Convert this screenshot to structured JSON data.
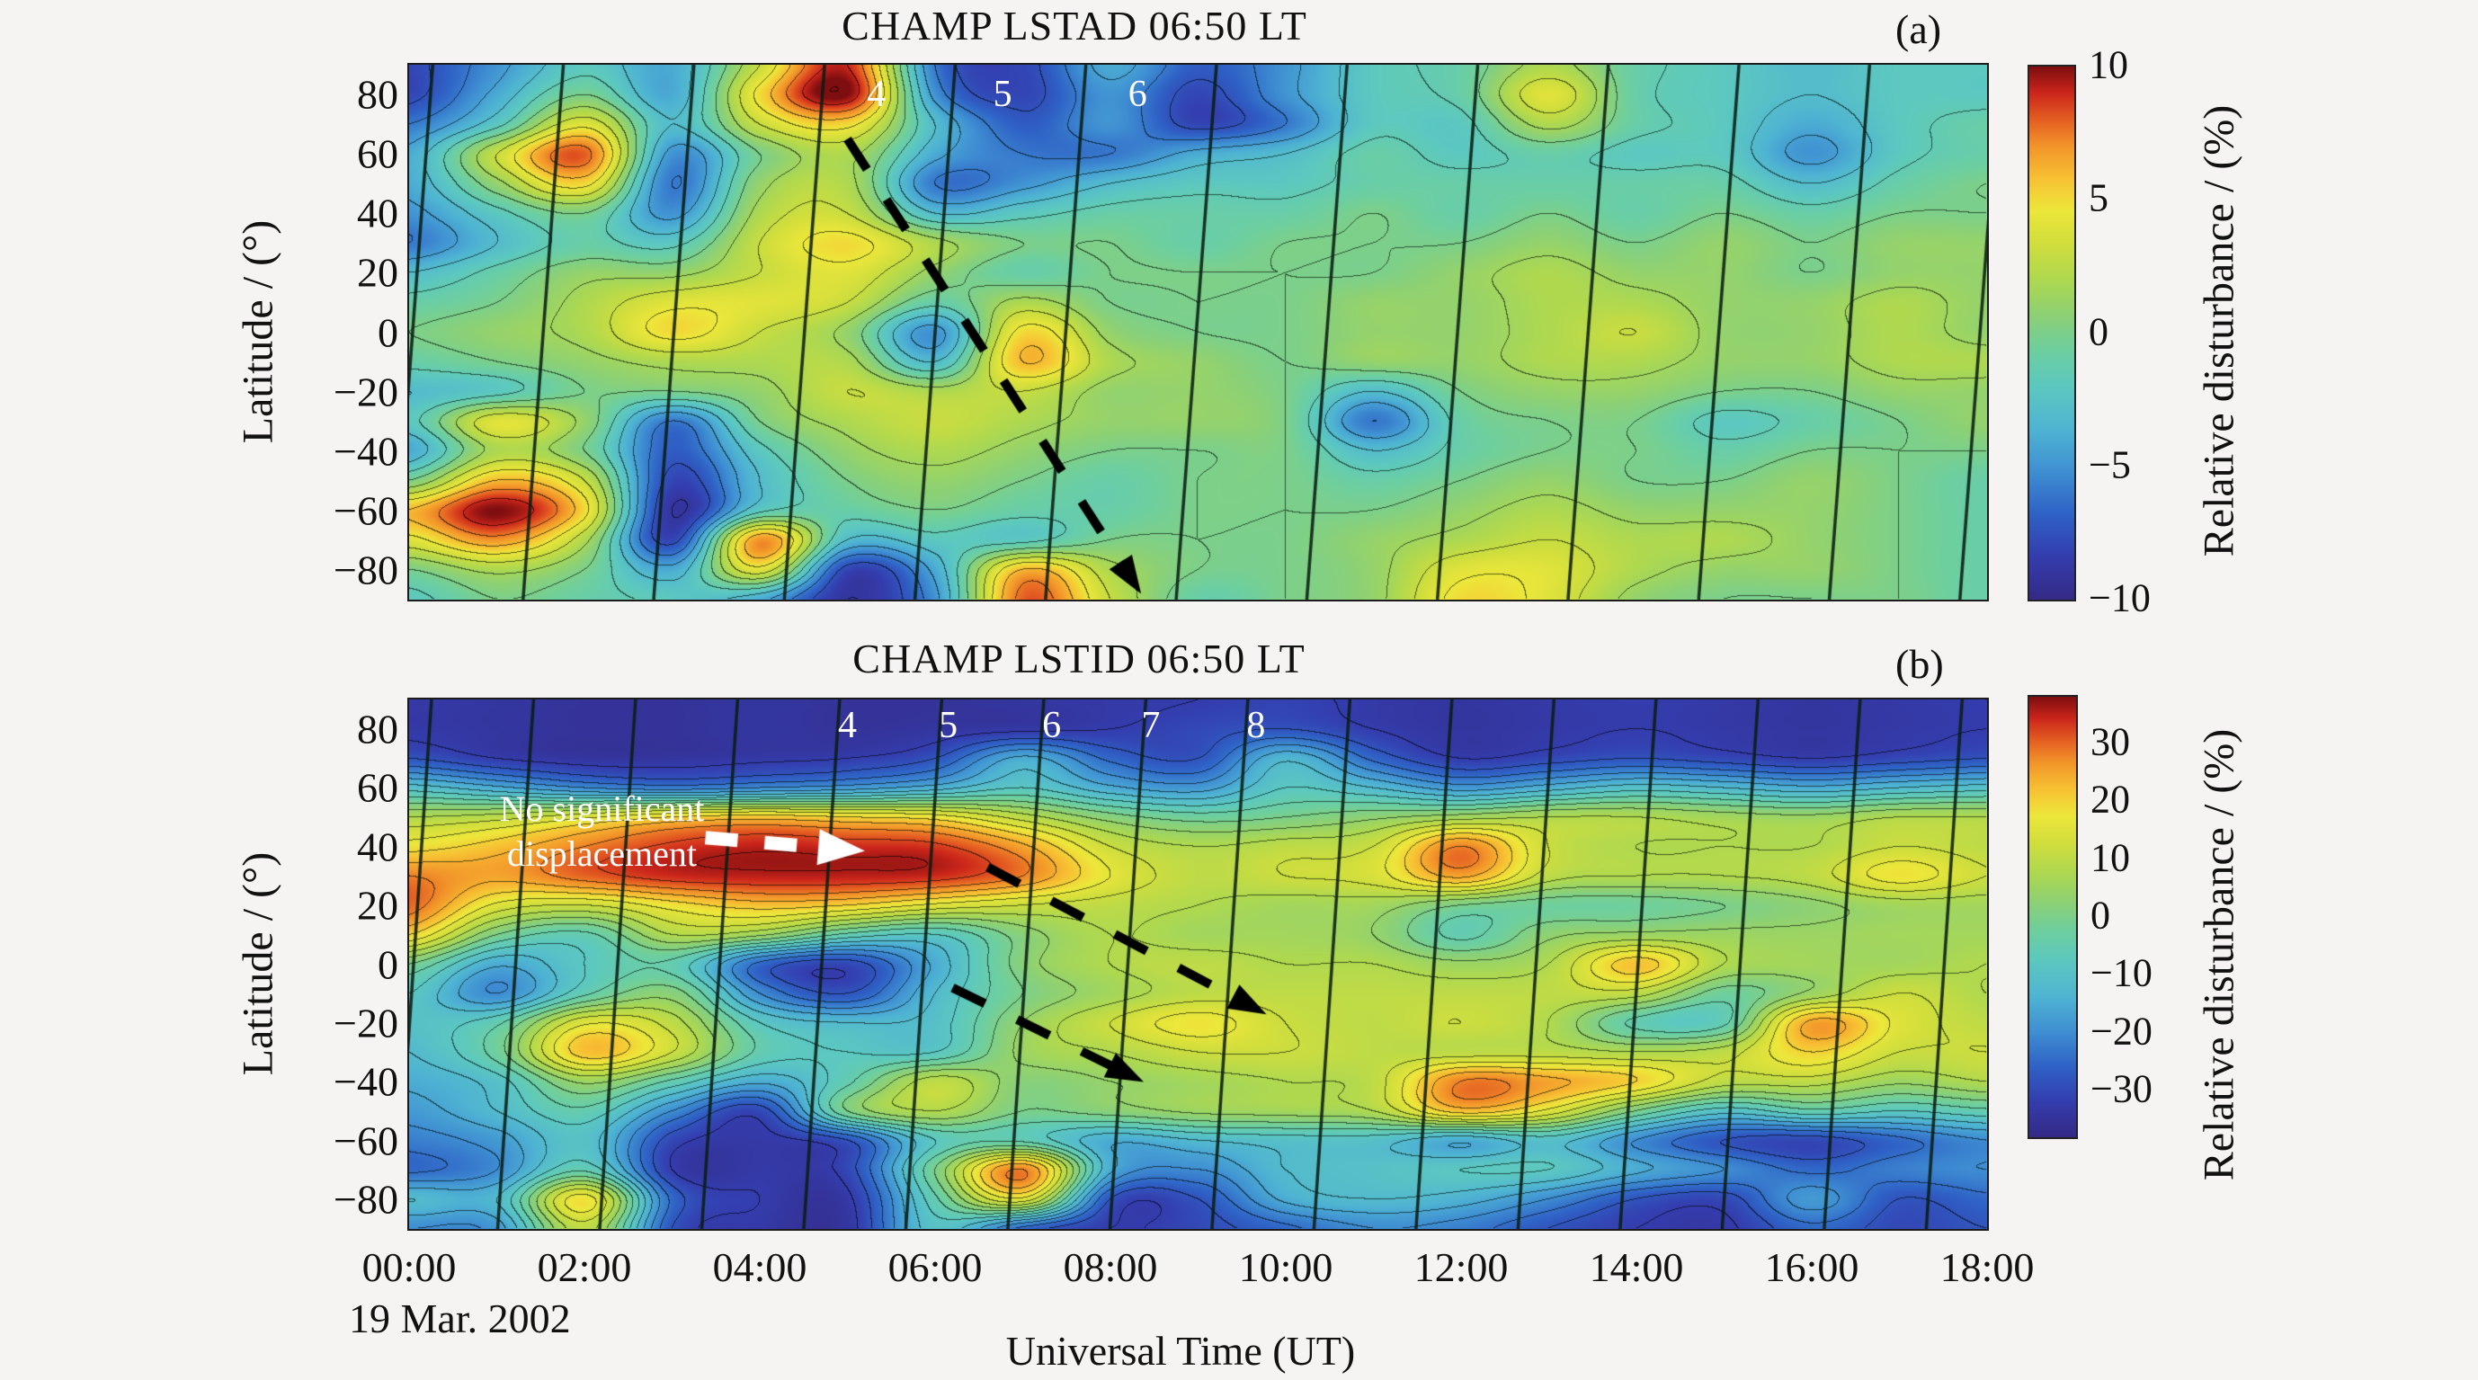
{
  "figure": {
    "background": "#f6f4f2",
    "date_label": "19 Mar. 2002",
    "x_axis_label": "Universal Time (UT)",
    "y_axis_label": "Latitude / (°)",
    "colorbar_label": "Relative disturbance / (%)",
    "x_ticks": [
      "00:00",
      "02:00",
      "04:00",
      "06:00",
      "08:00",
      "10:00",
      "12:00",
      "14:00",
      "16:00",
      "18:00"
    ],
    "y_ticks": [
      "80",
      "60",
      "40",
      "20",
      "0",
      "−20",
      "−40",
      "−60",
      "−80"
    ],
    "colormap_stops": [
      [
        0.0,
        "#352a86"
      ],
      [
        0.08,
        "#343dae"
      ],
      [
        0.16,
        "#2f62c6"
      ],
      [
        0.24,
        "#3f8fd2"
      ],
      [
        0.32,
        "#4fb4d2"
      ],
      [
        0.4,
        "#5cc8c0"
      ],
      [
        0.47,
        "#6ecf9e"
      ],
      [
        0.53,
        "#8bd077"
      ],
      [
        0.6,
        "#aed850"
      ],
      [
        0.67,
        "#d2de3c"
      ],
      [
        0.73,
        "#ede73a"
      ],
      [
        0.79,
        "#f7c133"
      ],
      [
        0.85,
        "#f2952a"
      ],
      [
        0.9,
        "#e55f22"
      ],
      [
        0.95,
        "#cc261b"
      ],
      [
        1.0,
        "#7f0e10"
      ]
    ]
  },
  "chart_data": [
    {
      "panel": "a",
      "type": "heatmap",
      "title": "CHAMP LSTAD  06:50 LT",
      "corner_label": "(a)",
      "xlabel": "Universal Time (UT)",
      "ylabel": "Latitude / (°)",
      "zlabel": "Relative disturbance / (%)",
      "x_hours": [
        0,
        1,
        2,
        3,
        4,
        5,
        6,
        7,
        8,
        9,
        10,
        11,
        12,
        13,
        14,
        15,
        16,
        17,
        18
      ],
      "y_lat": [
        90,
        80,
        70,
        60,
        50,
        40,
        30,
        20,
        10,
        0,
        -10,
        -20,
        -30,
        -40,
        -50,
        -60,
        -70,
        -80,
        -90
      ],
      "zlim": [
        -10,
        10
      ],
      "contour_interval": 1.5,
      "colorbar_ticks": [
        "10",
        "5",
        "0",
        "−5",
        "−10"
      ],
      "colorbar_tick_values": [
        10,
        5,
        0,
        -5,
        -10
      ],
      "orbit_track_labels": [
        {
          "text": "4",
          "t": 5.33,
          "lat": 80
        },
        {
          "text": "5",
          "t": 6.77,
          "lat": 80
        },
        {
          "text": "6",
          "t": 8.31,
          "lat": 80
        }
      ],
      "orbit_tracks": {
        "first_t": 0.27,
        "spacing_t": 1.49,
        "tilt_t": -0.46
      },
      "arrows": [
        {
          "style": "dashed",
          "color": "#000000",
          "from": [
            5.0,
            65
          ],
          "to": [
            8.35,
            -88
          ]
        }
      ],
      "values": [
        [
          -8,
          -5,
          -2,
          -4,
          3,
          9,
          -6,
          -8,
          -4,
          -7,
          -5,
          -2,
          -1,
          2,
          -1,
          -2,
          -3,
          -2,
          -2
        ],
        [
          -8,
          -4,
          0,
          -4,
          5,
          10,
          -5,
          -8,
          -5,
          -8,
          -5,
          -2,
          -1,
          4,
          -1,
          -2,
          -3,
          -2,
          -2
        ],
        [
          -6,
          -2,
          4,
          -3,
          3,
          5,
          -3,
          -7,
          -5,
          -8,
          -6,
          -2,
          -2,
          2,
          -1,
          -2,
          -4,
          -2,
          -1
        ],
        [
          -4,
          3,
          8,
          -5,
          0,
          2,
          -4,
          -6,
          -6,
          -4,
          -3,
          -1,
          -2,
          -1,
          -2,
          -2,
          -5,
          -2,
          -1
        ],
        [
          -4,
          1,
          5,
          -6,
          1,
          2,
          -6,
          -5,
          -3,
          -2,
          -2,
          -1,
          -1,
          -1,
          -1,
          -1,
          -3,
          -1,
          0
        ],
        [
          -5,
          -2,
          0,
          -5,
          2,
          3,
          -3,
          -2,
          -1,
          -1,
          -1,
          0,
          -1,
          0,
          -1,
          0,
          -1,
          0,
          0
        ],
        [
          -6,
          -3,
          -1,
          -2,
          3,
          5,
          2,
          0,
          0,
          -1,
          0,
          0,
          0,
          1,
          0,
          1,
          0,
          1,
          1
        ],
        [
          -3,
          -1,
          1,
          1,
          3,
          4,
          1,
          -1,
          0,
          0,
          0,
          0,
          1,
          2,
          1,
          1,
          0,
          1,
          1
        ],
        [
          -1,
          0,
          2,
          4,
          4,
          3,
          -1,
          2,
          0,
          0,
          0,
          1,
          1,
          2,
          2,
          1,
          1,
          2,
          1
        ],
        [
          0,
          1,
          2,
          5,
          3,
          1,
          -5,
          5,
          1,
          0,
          0,
          1,
          1,
          2,
          3,
          1,
          1,
          2,
          1
        ],
        [
          -1,
          0,
          1,
          2,
          2,
          2,
          -3,
          6,
          2,
          1,
          0,
          1,
          1,
          2,
          2,
          1,
          1,
          2,
          2
        ],
        [
          -3,
          -2,
          0,
          0,
          1,
          3,
          2,
          3,
          1,
          1,
          0,
          -3,
          0,
          1,
          1,
          0,
          0,
          1,
          1
        ],
        [
          -2,
          4,
          1,
          -6,
          0,
          2,
          3,
          2,
          1,
          1,
          0,
          -6,
          -1,
          0,
          0,
          -2,
          -1,
          0,
          1
        ],
        [
          -4,
          2,
          0,
          -7,
          -2,
          1,
          2,
          1,
          0,
          0,
          0,
          -3,
          -1,
          0,
          0,
          -1,
          0,
          0,
          0
        ],
        [
          0,
          6,
          3,
          -8,
          -3,
          0,
          1,
          0,
          -1,
          0,
          0,
          -1,
          0,
          1,
          0,
          0,
          1,
          0,
          -1
        ],
        [
          6,
          10,
          5,
          -9,
          -2,
          -1,
          0,
          -1,
          -1,
          0,
          0,
          0,
          1,
          2,
          1,
          1,
          1,
          0,
          -1
        ],
        [
          4,
          7,
          2,
          -8,
          7,
          -3,
          -2,
          -2,
          0,
          0,
          0,
          1,
          2,
          3,
          2,
          2,
          1,
          0,
          -1
        ],
        [
          0,
          2,
          0,
          -4,
          4,
          -8,
          -4,
          6,
          2,
          0,
          0,
          1,
          4,
          4,
          2,
          1,
          1,
          0,
          -1
        ],
        [
          -2,
          0,
          -1,
          -2,
          -4,
          -9,
          -5,
          8,
          3,
          -1,
          0,
          1,
          5,
          4,
          1,
          0,
          0,
          0,
          -1
        ]
      ]
    },
    {
      "panel": "b",
      "type": "heatmap",
      "title": "CHAMP LSTID  06:50 LT",
      "corner_label": "(b)",
      "xlabel": "Universal Time (UT)",
      "ylabel": "Latitude / (°)",
      "zlabel": "Relative disturbance / (%)",
      "x_hours": [
        0,
        1,
        2,
        3,
        4,
        5,
        6,
        7,
        8,
        9,
        10,
        11,
        12,
        13,
        14,
        15,
        16,
        17,
        18
      ],
      "y_lat": [
        90,
        80,
        70,
        60,
        50,
        40,
        30,
        20,
        10,
        0,
        -10,
        -20,
        -30,
        -40,
        -50,
        -60,
        -70,
        -80,
        -90
      ],
      "zlim": [
        -38,
        38
      ],
      "contour_interval": 4,
      "colorbar_ticks": [
        "30",
        "20",
        "10",
        "0",
        "−10",
        "−20",
        "−30"
      ],
      "colorbar_tick_values": [
        30,
        20,
        10,
        0,
        -10,
        -20,
        -30
      ],
      "orbit_track_labels": [
        {
          "text": "4",
          "t": 5.0,
          "lat": 81
        },
        {
          "text": "5",
          "t": 6.15,
          "lat": 81
        },
        {
          "text": "6",
          "t": 7.33,
          "lat": 81
        },
        {
          "text": "7",
          "t": 8.46,
          "lat": 81
        },
        {
          "text": "8",
          "t": 9.66,
          "lat": 81
        }
      ],
      "orbit_tracks": {
        "first_t": 0.256,
        "spacing_t": 1.164,
        "tilt_t": -0.41
      },
      "arrows": [
        {
          "style": "dashed",
          "color": "#000000",
          "from": [
            6.6,
            33
          ],
          "to": [
            9.78,
            -17
          ]
        },
        {
          "style": "dashed",
          "color": "#000000",
          "from": [
            6.2,
            -8
          ],
          "to": [
            8.38,
            -40
          ]
        },
        {
          "style": "dashed",
          "color": "#ffffff",
          "from": [
            3.38,
            43
          ],
          "to": [
            5.2,
            38.5
          ]
        }
      ],
      "text_annotations": [
        {
          "lines": [
            "No significant",
            "displacement"
          ],
          "color": "#ffffff",
          "t": 2.2,
          "lat": 45
        }
      ],
      "values": [
        [
          -33,
          -34,
          -35,
          -35,
          -34,
          -35,
          -35,
          -34,
          -33,
          -32,
          -31,
          -33,
          -34,
          -33,
          -32,
          -33,
          -34,
          -33,
          -32
        ],
        [
          -33,
          -34,
          -35,
          -35,
          -34,
          -35,
          -34,
          -33,
          -32,
          -30,
          -28,
          -32,
          -34,
          -33,
          -32,
          -33,
          -34,
          -33,
          -32
        ],
        [
          -28,
          -32,
          -34,
          -34,
          -33,
          -32,
          -28,
          -15,
          -25,
          -28,
          -13,
          -25,
          -32,
          -30,
          -28,
          -30,
          -32,
          -30,
          -28
        ],
        [
          -10,
          -15,
          -20,
          -22,
          -20,
          -18,
          -14,
          -8,
          -15,
          -18,
          -8,
          -12,
          -18,
          -14,
          -10,
          -12,
          -15,
          -12,
          -10
        ],
        [
          8,
          10,
          15,
          20,
          22,
          20,
          18,
          10,
          2,
          -2,
          0,
          3,
          6,
          8,
          8,
          6,
          5,
          8,
          8
        ],
        [
          18,
          22,
          28,
          33,
          35,
          34,
          33,
          25,
          12,
          8,
          10,
          12,
          28,
          12,
          8,
          8,
          8,
          12,
          10
        ],
        [
          28,
          25,
          30,
          34,
          35,
          35,
          34,
          28,
          16,
          10,
          12,
          14,
          25,
          10,
          8,
          8,
          10,
          18,
          12
        ],
        [
          30,
          15,
          12,
          18,
          22,
          20,
          15,
          12,
          10,
          8,
          6,
          6,
          0,
          -2,
          -2,
          0,
          3,
          6,
          6
        ],
        [
          20,
          0,
          -5,
          8,
          5,
          -5,
          -8,
          2,
          8,
          6,
          6,
          4,
          -5,
          3,
          5,
          5,
          5,
          6,
          6
        ],
        [
          0,
          -15,
          -8,
          -5,
          -25,
          -30,
          -15,
          2,
          8,
          10,
          8,
          8,
          5,
          8,
          22,
          8,
          6,
          6,
          8
        ],
        [
          -8,
          -20,
          -5,
          2,
          -20,
          -28,
          -12,
          0,
          6,
          10,
          10,
          10,
          10,
          10,
          10,
          -2,
          5,
          12,
          8
        ],
        [
          -10,
          -5,
          15,
          10,
          -8,
          -12,
          -10,
          4,
          12,
          18,
          12,
          10,
          12,
          8,
          -5,
          -5,
          25,
          15,
          10
        ],
        [
          -12,
          -2,
          22,
          12,
          -5,
          -8,
          -8,
          5,
          8,
          12,
          12,
          10,
          10,
          10,
          8,
          10,
          20,
          12,
          12
        ],
        [
          -15,
          -10,
          5,
          -5,
          -15,
          -5,
          10,
          2,
          4,
          6,
          8,
          10,
          28,
          25,
          20,
          10,
          10,
          5,
          8
        ],
        [
          -18,
          -12,
          -5,
          -20,
          -30,
          0,
          8,
          0,
          2,
          5,
          6,
          8,
          22,
          15,
          0,
          -10,
          -5,
          -8,
          -5
        ],
        [
          -22,
          -18,
          -10,
          -30,
          -33,
          -28,
          -8,
          -5,
          -15,
          -12,
          -10,
          -10,
          -15,
          -10,
          -20,
          -28,
          -30,
          -25,
          -20
        ],
        [
          -25,
          -20,
          -5,
          -32,
          -33,
          -30,
          0,
          28,
          -15,
          -20,
          -12,
          -10,
          -8,
          -8,
          -15,
          -20,
          -25,
          -22,
          -20
        ],
        [
          -12,
          -12,
          18,
          -25,
          -32,
          -33,
          -5,
          15,
          -28,
          -28,
          -15,
          -12,
          -14,
          -20,
          -28,
          -30,
          -18,
          -28,
          -25
        ],
        [
          -20,
          -18,
          10,
          -28,
          -33,
          -34,
          -10,
          -25,
          -32,
          -30,
          -25,
          -20,
          -22,
          -28,
          -32,
          -33,
          -25,
          -30,
          -28
        ]
      ]
    }
  ]
}
